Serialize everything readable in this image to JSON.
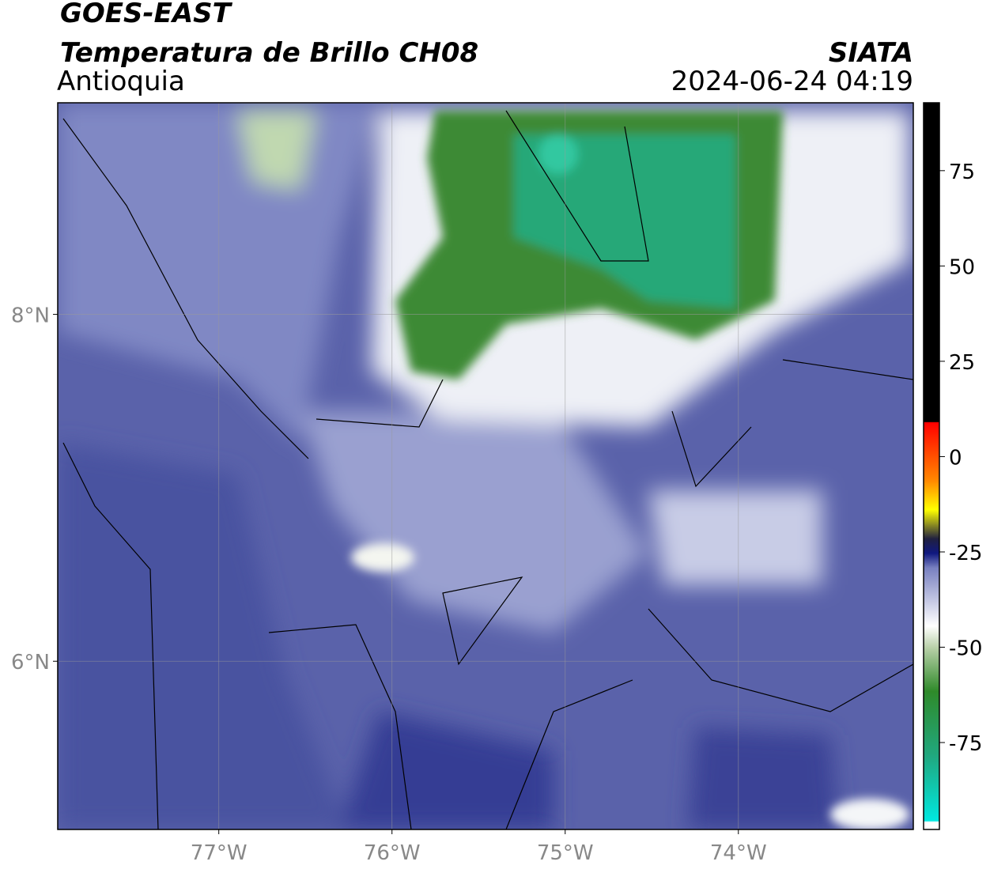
{
  "header": {
    "satellite": "GOES-EAST",
    "product": "Temperatura de Brillo CH08",
    "region": "Antioquia",
    "source": "SIATA",
    "datetime": "2024-06-24 04:19"
  },
  "map": {
    "lonlim": [
      -77.93,
      -72.99
    ],
    "latlim": [
      5.03,
      9.22
    ],
    "lon_ticks": [
      {
        "value": -77,
        "label": "77°W"
      },
      {
        "value": -76,
        "label": "76°W"
      },
      {
        "value": -75,
        "label": "75°W"
      },
      {
        "value": -74,
        "label": "74°W"
      }
    ],
    "lat_ticks": [
      {
        "value": 8,
        "label": "8°N"
      },
      {
        "value": 6,
        "label": "6°N"
      }
    ]
  },
  "colorbar": {
    "lim": [
      -97.8,
      92.8
    ],
    "ticks": [
      -75,
      -50,
      -25,
      0,
      25,
      50,
      75
    ]
  }
}
